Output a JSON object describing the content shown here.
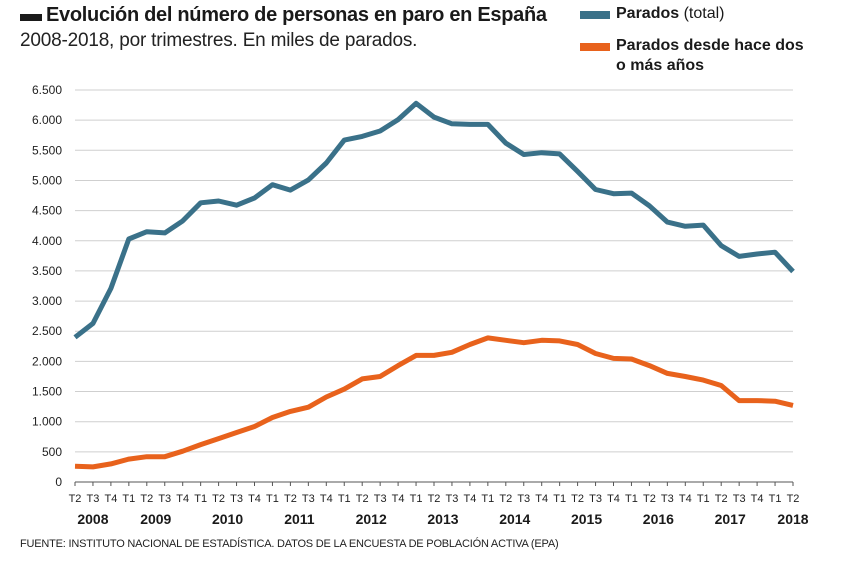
{
  "header": {
    "title": "Evolución del número de personas en paro en España",
    "subtitle": "2008-2018, por trimestres. En miles de parados."
  },
  "legend": {
    "items": [
      {
        "label": "Parados",
        "sublabel": "(total)",
        "color": "#3a7189"
      },
      {
        "label": "Parados desde hace dos o más años",
        "sublabel": "",
        "color": "#e8621c"
      }
    ]
  },
  "footer": {
    "source": "FUENTE: INSTITUTO NACIONAL DE ESTADÍSTICA. DATOS DE LA ENCUESTA DE POBLACIÓN ACTIVA (EPA)"
  },
  "chart_data": {
    "type": "line",
    "categories": [
      "T2",
      "T3",
      "T4",
      "T1",
      "T2",
      "T3",
      "T4",
      "T1",
      "T2",
      "T3",
      "T4",
      "T1",
      "T2",
      "T3",
      "T4",
      "T1",
      "T2",
      "T3",
      "T4",
      "T1",
      "T2",
      "T3",
      "T4",
      "T1",
      "T2",
      "T3",
      "T4",
      "T1",
      "T2",
      "T3",
      "T4",
      "T1",
      "T2",
      "T3",
      "T4",
      "T1",
      "T2",
      "T3",
      "T4",
      "T1",
      "T2"
    ],
    "year_labels": [
      {
        "label": "2008",
        "index": 1
      },
      {
        "label": "2009",
        "index": 4.5
      },
      {
        "label": "2010",
        "index": 8.5
      },
      {
        "label": "2011",
        "index": 12.5
      },
      {
        "label": "2012",
        "index": 16.5
      },
      {
        "label": "2013",
        "index": 20.5
      },
      {
        "label": "2014",
        "index": 24.5
      },
      {
        "label": "2015",
        "index": 28.5
      },
      {
        "label": "2016",
        "index": 32.5
      },
      {
        "label": "2017",
        "index": 36.5
      },
      {
        "label": "2018",
        "index": 40
      }
    ],
    "series": [
      {
        "name": "Parados (total)",
        "color": "#3a7189",
        "values": [
          2400,
          2630,
          3210,
          4030,
          4150,
          4130,
          4330,
          4630,
          4660,
          4590,
          4710,
          4930,
          4840,
          5010,
          5290,
          5670,
          5730,
          5820,
          6010,
          6280,
          6050,
          5940,
          5930,
          5930,
          5620,
          5430,
          5460,
          5440,
          5150,
          4850,
          4780,
          4790,
          4580,
          4310,
          4240,
          4260,
          3920,
          3740,
          3780,
          3810,
          3490
        ]
      },
      {
        "name": "Parados desde hace dos o más años",
        "color": "#e8621c",
        "values": [
          260,
          250,
          300,
          380,
          420,
          420,
          510,
          620,
          720,
          820,
          920,
          1070,
          1170,
          1240,
          1410,
          1540,
          1710,
          1750,
          1930,
          2100,
          2100,
          2150,
          2280,
          2390,
          2350,
          2310,
          2350,
          2340,
          2280,
          2130,
          2050,
          2040,
          1930,
          1800,
          1750,
          1690,
          1600,
          1350,
          1350,
          1340,
          1270
        ]
      }
    ],
    "yticks": [
      0,
      500,
      1000,
      1500,
      2000,
      2500,
      3000,
      3500,
      4000,
      4500,
      5000,
      5500,
      6000,
      6500
    ],
    "ytick_labels": [
      "0",
      "500",
      "1.000",
      "1.500",
      "2.000",
      "2.500",
      "3.000",
      "3.500",
      "4.000",
      "4.500",
      "5.000",
      "5.500",
      "6.000",
      "6.500"
    ],
    "ylim": [
      0,
      6500
    ],
    "grid": true,
    "xlabel": "",
    "ylabel": ""
  }
}
